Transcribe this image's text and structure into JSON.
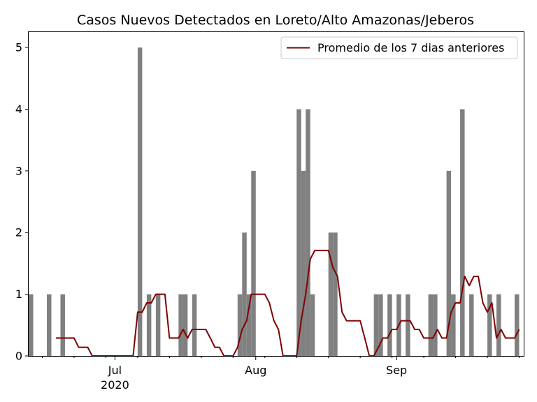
{
  "chart_data": {
    "type": "bar",
    "title": "Casos Nuevos Detectados en Loreto/Alto Amazonas/Jeberos",
    "xlabel": "",
    "ylabel": "",
    "x_start": "2020-06-12",
    "x_end": "2020-09-29",
    "ylim": [
      0,
      5.25
    ],
    "yticks": [
      0,
      1,
      2,
      3,
      4,
      5
    ],
    "xticks": [
      {
        "date": "2020-07-01",
        "label": "Jul",
        "sublabel": "2020"
      },
      {
        "date": "2020-08-01",
        "label": "Aug",
        "sublabel": ""
      },
      {
        "date": "2020-09-01",
        "label": "Sep",
        "sublabel": ""
      }
    ],
    "bar_color": "#808080",
    "line_color": "#800000",
    "bars": [
      {
        "date": "2020-06-12",
        "value": 1
      },
      {
        "date": "2020-06-16",
        "value": 1
      },
      {
        "date": "2020-06-19",
        "value": 1
      },
      {
        "date": "2020-07-06",
        "value": 5
      },
      {
        "date": "2020-07-08",
        "value": 1
      },
      {
        "date": "2020-07-10",
        "value": 1
      },
      {
        "date": "2020-07-15",
        "value": 1
      },
      {
        "date": "2020-07-16",
        "value": 1
      },
      {
        "date": "2020-07-18",
        "value": 1
      },
      {
        "date": "2020-07-28",
        "value": 1
      },
      {
        "date": "2020-07-29",
        "value": 2
      },
      {
        "date": "2020-07-30",
        "value": 1
      },
      {
        "date": "2020-07-31",
        "value": 3
      },
      {
        "date": "2020-08-10",
        "value": 4
      },
      {
        "date": "2020-08-11",
        "value": 3
      },
      {
        "date": "2020-08-12",
        "value": 4
      },
      {
        "date": "2020-08-13",
        "value": 1
      },
      {
        "date": "2020-08-17",
        "value": 2
      },
      {
        "date": "2020-08-18",
        "value": 2
      },
      {
        "date": "2020-08-27",
        "value": 1
      },
      {
        "date": "2020-08-28",
        "value": 1
      },
      {
        "date": "2020-08-30",
        "value": 1
      },
      {
        "date": "2020-09-01",
        "value": 1
      },
      {
        "date": "2020-09-03",
        "value": 1
      },
      {
        "date": "2020-09-08",
        "value": 1
      },
      {
        "date": "2020-09-09",
        "value": 1
      },
      {
        "date": "2020-09-12",
        "value": 3
      },
      {
        "date": "2020-09-13",
        "value": 1
      },
      {
        "date": "2020-09-15",
        "value": 4
      },
      {
        "date": "2020-09-17",
        "value": 1
      },
      {
        "date": "2020-09-21",
        "value": 1
      },
      {
        "date": "2020-09-23",
        "value": 1
      },
      {
        "date": "2020-09-27",
        "value": 1
      }
    ],
    "series": [
      {
        "name": "Promedio de los 7 dias anteriores",
        "start": "2020-06-18",
        "values": [
          0.29,
          0.29,
          0.29,
          0.29,
          0.29,
          0.14,
          0.14,
          0.14,
          0,
          0,
          0,
          0,
          0,
          0,
          0,
          0,
          0,
          0,
          0.71,
          0.71,
          0.86,
          0.86,
          1,
          1,
          1,
          0.29,
          0.29,
          0.29,
          0.43,
          0.29,
          0.43,
          0.43,
          0.43,
          0.43,
          0.29,
          0.14,
          0.14,
          0,
          0,
          0,
          0.14,
          0.43,
          0.57,
          1,
          1,
          1,
          1,
          0.86,
          0.57,
          0.43,
          0,
          0,
          0,
          0,
          0.57,
          1,
          1.57,
          1.71,
          1.71,
          1.71,
          1.71,
          1.43,
          1.29,
          0.71,
          0.57,
          0.57,
          0.57,
          0.57,
          0.29,
          0,
          0,
          0.14,
          0.29,
          0.29,
          0.43,
          0.43,
          0.57,
          0.57,
          0.57,
          0.43,
          0.43,
          0.29,
          0.29,
          0.29,
          0.43,
          0.29,
          0.29,
          0.71,
          0.86,
          0.86,
          1.29,
          1.14,
          1.29,
          1.29,
          0.86,
          0.71,
          0.86,
          0.29,
          0.43,
          0.29,
          0.29,
          0.29,
          0.43
        ]
      }
    ],
    "legend": {
      "position": "top-right"
    },
    "grid": false
  }
}
